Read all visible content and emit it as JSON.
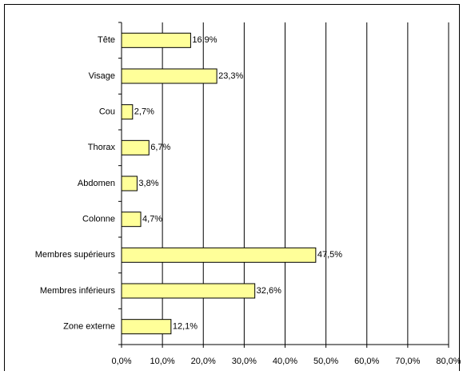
{
  "chart_data": {
    "type": "bar",
    "orientation": "horizontal",
    "categories": [
      "Tête",
      "Visage",
      "Cou",
      "Thorax",
      "Abdomen",
      "Colonne",
      "Membres supérieurs",
      "Membres inférieurs",
      "Zone externe"
    ],
    "values": [
      16.9,
      23.3,
      2.7,
      6.7,
      3.8,
      4.7,
      47.5,
      32.6,
      12.1
    ],
    "value_labels": [
      "16,9%",
      "23,3%",
      "2,7%",
      "6,7%",
      "3,8%",
      "4,7%",
      "47,5%",
      "32,6%",
      "12,1%"
    ],
    "color": "#ffff99",
    "xlim": [
      0,
      80
    ],
    "xticks": [
      {
        "value": 0,
        "label": "0,0%"
      },
      {
        "value": 10,
        "label": "10,0%"
      },
      {
        "value": 20,
        "label": "20,0%"
      },
      {
        "value": 30,
        "label": "30,0%"
      },
      {
        "value": 40,
        "label": "40,0%"
      },
      {
        "value": 50,
        "label": "50,0%"
      },
      {
        "value": 60,
        "label": "60,0%"
      },
      {
        "value": 70,
        "label": "70,0%"
      },
      {
        "value": 80,
        "label": "80,0%"
      }
    ],
    "grid": true
  }
}
